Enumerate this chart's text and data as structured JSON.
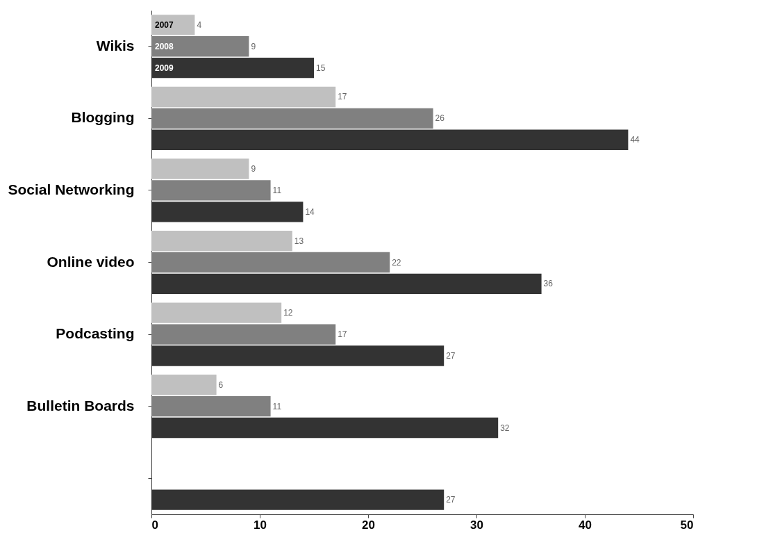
{
  "chart_data": {
    "type": "bar",
    "orientation": "horizontal",
    "categories": [
      "Wikis",
      "Blogging",
      "Social Networking",
      "Online video",
      "Podcasting",
      "Bulletin Boards",
      null
    ],
    "series": [
      {
        "name": "2007",
        "color": "#c0c0c0",
        "values": [
          4,
          17,
          9,
          13,
          12,
          6,
          null
        ]
      },
      {
        "name": "2008",
        "color": "#808080",
        "values": [
          9,
          26,
          11,
          22,
          17,
          11,
          null
        ]
      },
      {
        "name": "2009",
        "color": "#333333",
        "values": [
          15,
          44,
          14,
          36,
          27,
          32,
          27
        ]
      }
    ],
    "xlim": [
      0,
      50
    ],
    "xticks": [
      0,
      10,
      20,
      30,
      40,
      50
    ],
    "grid": false,
    "data_labels": true,
    "legend": "top left"
  }
}
